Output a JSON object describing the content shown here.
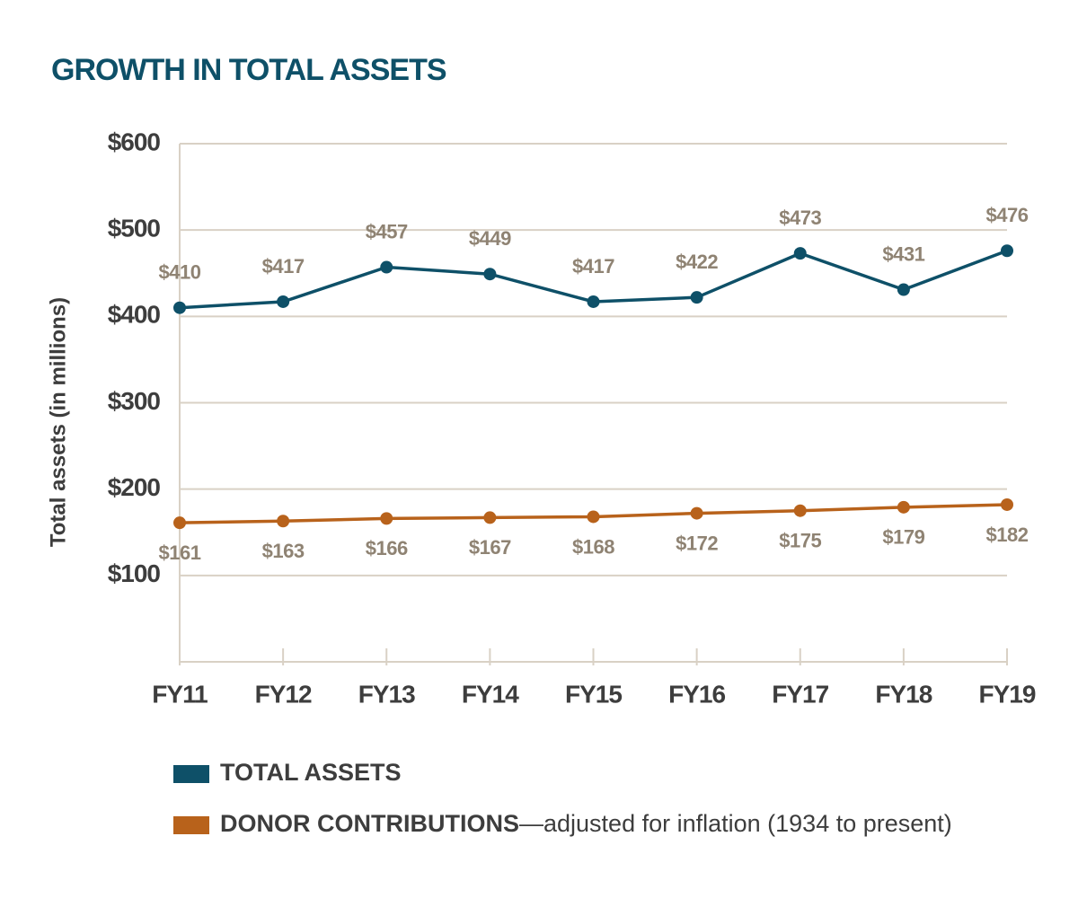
{
  "chart_data": {
    "type": "line",
    "title": "GROWTH IN TOTAL ASSETS",
    "y_label": "Total assets (in millions)",
    "categories": [
      "FY11",
      "FY12",
      "FY13",
      "FY14",
      "FY15",
      "FY16",
      "FY17",
      "FY18",
      "FY19"
    ],
    "series": [
      {
        "name": "TOTAL ASSETS",
        "color": "#0e5068",
        "values": [
          410,
          417,
          457,
          449,
          417,
          422,
          473,
          431,
          476
        ],
        "value_labels": [
          "$410",
          "$417",
          "$457",
          "$449",
          "$417",
          "$422",
          "$473",
          "$431",
          "$476"
        ]
      },
      {
        "name": "DONOR CONTRIBUTIONS",
        "legend_note": "—adjusted for inflation (1934 to present)",
        "color": "#b8621b",
        "values": [
          161,
          163,
          166,
          167,
          168,
          172,
          175,
          179,
          182
        ],
        "value_labels": [
          "$161",
          "$163",
          "$166",
          "$167",
          "$168",
          "$172",
          "$175",
          "$179",
          "$182"
        ]
      }
    ],
    "ylim": [
      0,
      600
    ],
    "yticks": [
      {
        "value": 100,
        "label": "$100"
      },
      {
        "value": 200,
        "label": "$200"
      },
      {
        "value": 300,
        "label": "$300"
      },
      {
        "value": 400,
        "label": "$400"
      },
      {
        "value": 500,
        "label": "$500"
      },
      {
        "value": 600,
        "label": "$600"
      }
    ],
    "grid": true
  }
}
